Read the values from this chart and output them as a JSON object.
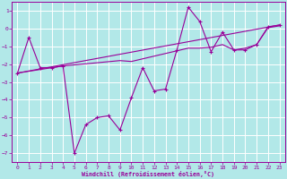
{
  "xlabel": "Windchill (Refroidissement éolien,°C)",
  "background_color": "#b2e8e8",
  "line_color": "#990099",
  "grid_color": "#ffffff",
  "xlim": [
    -0.5,
    23.5
  ],
  "ylim": [
    -7.5,
    1.5
  ],
  "yticks": [
    1,
    0,
    -1,
    -2,
    -3,
    -4,
    -5,
    -6,
    -7
  ],
  "xticks": [
    0,
    1,
    2,
    3,
    4,
    5,
    6,
    7,
    8,
    9,
    10,
    11,
    12,
    13,
    14,
    15,
    16,
    17,
    18,
    19,
    20,
    21,
    22,
    23
  ],
  "series1_x": [
    0,
    1,
    2,
    3,
    4,
    5,
    6,
    7,
    8,
    9,
    10,
    11,
    12,
    13,
    14,
    15,
    16,
    17,
    18,
    19,
    20,
    21,
    22,
    23
  ],
  "series1_y": [
    -2.5,
    -0.5,
    -2.2,
    -2.2,
    -2.1,
    -7.0,
    -5.4,
    -5.0,
    -4.9,
    -5.7,
    -3.9,
    -2.2,
    -3.5,
    -3.4,
    -1.2,
    1.2,
    0.4,
    -1.3,
    -0.2,
    -1.2,
    -1.2,
    -0.9,
    0.1,
    0.2
  ],
  "series2_x": [
    0,
    23
  ],
  "series2_y": [
    -2.5,
    0.2
  ],
  "series3_x": [
    0,
    4,
    9,
    10,
    15,
    16,
    17,
    18,
    19,
    20,
    21,
    22,
    23
  ],
  "series3_y": [
    -2.5,
    -2.1,
    -1.8,
    -1.85,
    -1.1,
    -1.1,
    -1.05,
    -0.9,
    -1.2,
    -1.1,
    -0.9,
    0.05,
    0.15
  ]
}
